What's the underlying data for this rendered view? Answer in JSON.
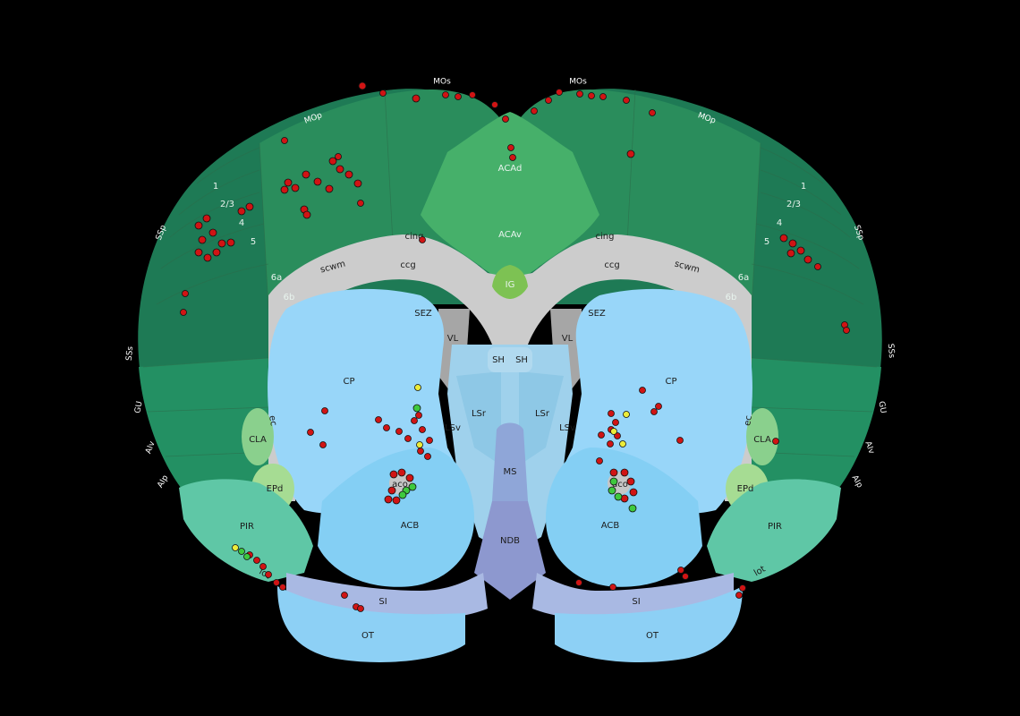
{
  "labels": {
    "motor_left": "MOs",
    "motor_right": "MOs",
    "mop_left": "MOp",
    "mop_right": "MOp",
    "ss_left": "SSp",
    "ss_right": "SSp",
    "sss_left": "SSs",
    "sss_right": "SSs",
    "gu_left": "GU",
    "gu_right": "GU",
    "aiv_left": "AIv",
    "aiv_right": "AIv",
    "aip_left": "AIp",
    "aip_right": "AIp",
    "ACAd": "ACAd",
    "ACAv": "ACAv",
    "IG": "IG",
    "cing_left": "cing",
    "cing_right": "cing",
    "ccg_left": "ccg",
    "ccg_right": "ccg",
    "scwm_left": "scwm",
    "scwm_right": "scwm",
    "SEZ_left": "SEZ",
    "SEZ_right": "SEZ",
    "VL_left": "VL",
    "VL_right": "VL",
    "SH_left": "SH",
    "SH_right": "SH",
    "LSr_left": "LSr",
    "LSr_right": "LSr",
    "LSv_left": "LSv",
    "LSv_right": "LSv",
    "MS": "MS",
    "NDB": "NDB",
    "CP_left": "CP",
    "CP_right": "CP",
    "ACB_left": "ACB",
    "ACB_right": "ACB",
    "aco_left": "aco",
    "aco_right": "aco",
    "CLA_left": "CLA",
    "CLA_right": "CLA",
    "EPd_left": "EPd",
    "EPd_right": "EPd",
    "PIR_left": "PIR",
    "PIR_right": "PIR",
    "lot_left": "lot",
    "lot_right": "lot",
    "SI_left": "SI",
    "SI_right": "SI",
    "OT_left": "OT",
    "OT_right": "OT",
    "ec_left": "ec",
    "ec_right": "ec",
    "layers": [
      "1",
      "2/3",
      "4",
      "5",
      "6a",
      "6b"
    ]
  },
  "colors": {
    "background": "#000000",
    "cortex_dark": "#1e7a55",
    "cortex_mid": "#2a8d5c",
    "cortex_light": "#3aa36b",
    "cingulate": "#46b06a",
    "ig": "#7dc253",
    "white_matter": "#cccccc",
    "ventricle": "#a6a6a6",
    "striatum": "#98d6f9",
    "acb": "#84cff4",
    "septum": "#9fd1ec",
    "ms": "#8fa6d8",
    "ndb": "#8d98cf",
    "claustrum": "#8ad08d",
    "epd": "#a6dc93",
    "piriform": "#5fc7a6",
    "marker_red": "#d01414",
    "marker_green": "#3ec93e",
    "marker_yellow": "#ecec3a"
  }
}
